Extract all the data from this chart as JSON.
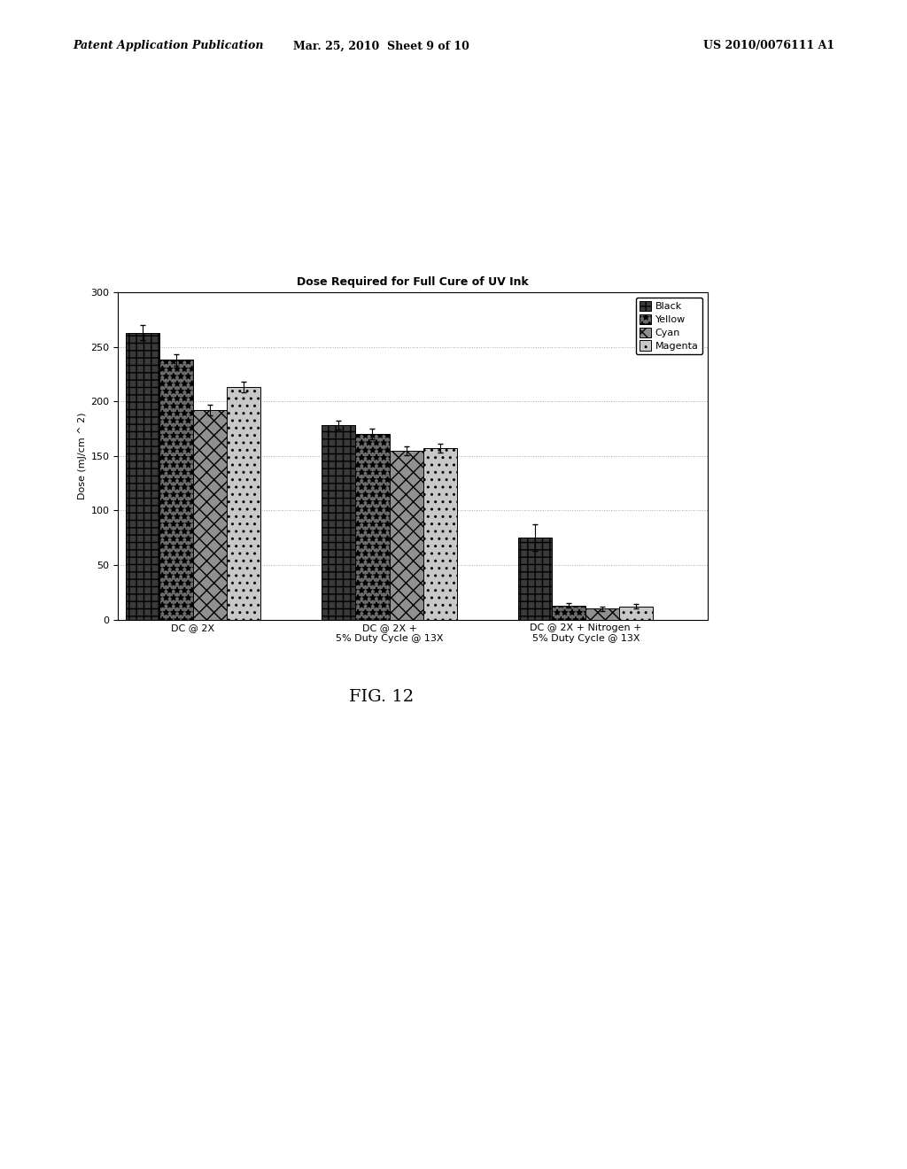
{
  "title": "Dose Required for Full Cure of UV Ink",
  "ylabel": "Dose (mJ/cm ^ 2)",
  "ylim": [
    0,
    300
  ],
  "yticks": [
    0,
    50,
    100,
    150,
    200,
    250,
    300
  ],
  "groups": [
    "DC @ 2X",
    "DC @ 2X +\n5% Duty Cycle @ 13X",
    "DC @ 2X + Nitrogen +\n5% Duty Cycle @ 13X"
  ],
  "series_labels": [
    "Black",
    "Yellow",
    "Cyan",
    "Magenta"
  ],
  "values": [
    [
      263,
      238,
      192,
      213
    ],
    [
      178,
      170,
      155,
      157
    ],
    [
      75,
      13,
      10,
      12
    ]
  ],
  "errors": [
    [
      7,
      5,
      5,
      5
    ],
    [
      4,
      5,
      4,
      4
    ],
    [
      12,
      2,
      2,
      2
    ]
  ],
  "bar_width": 0.18,
  "background_color": "#ffffff",
  "plot_bg_color": "#ffffff",
  "grid_color": "#aaaaaa",
  "title_fontsize": 9,
  "axis_fontsize": 8,
  "tick_fontsize": 8,
  "legend_fontsize": 8,
  "header_left": "Patent Application Publication",
  "header_mid": "Mar. 25, 2010  Sheet 9 of 10",
  "header_right": "US 2010/0076111 A1",
  "fig_label": "FIG. 12"
}
